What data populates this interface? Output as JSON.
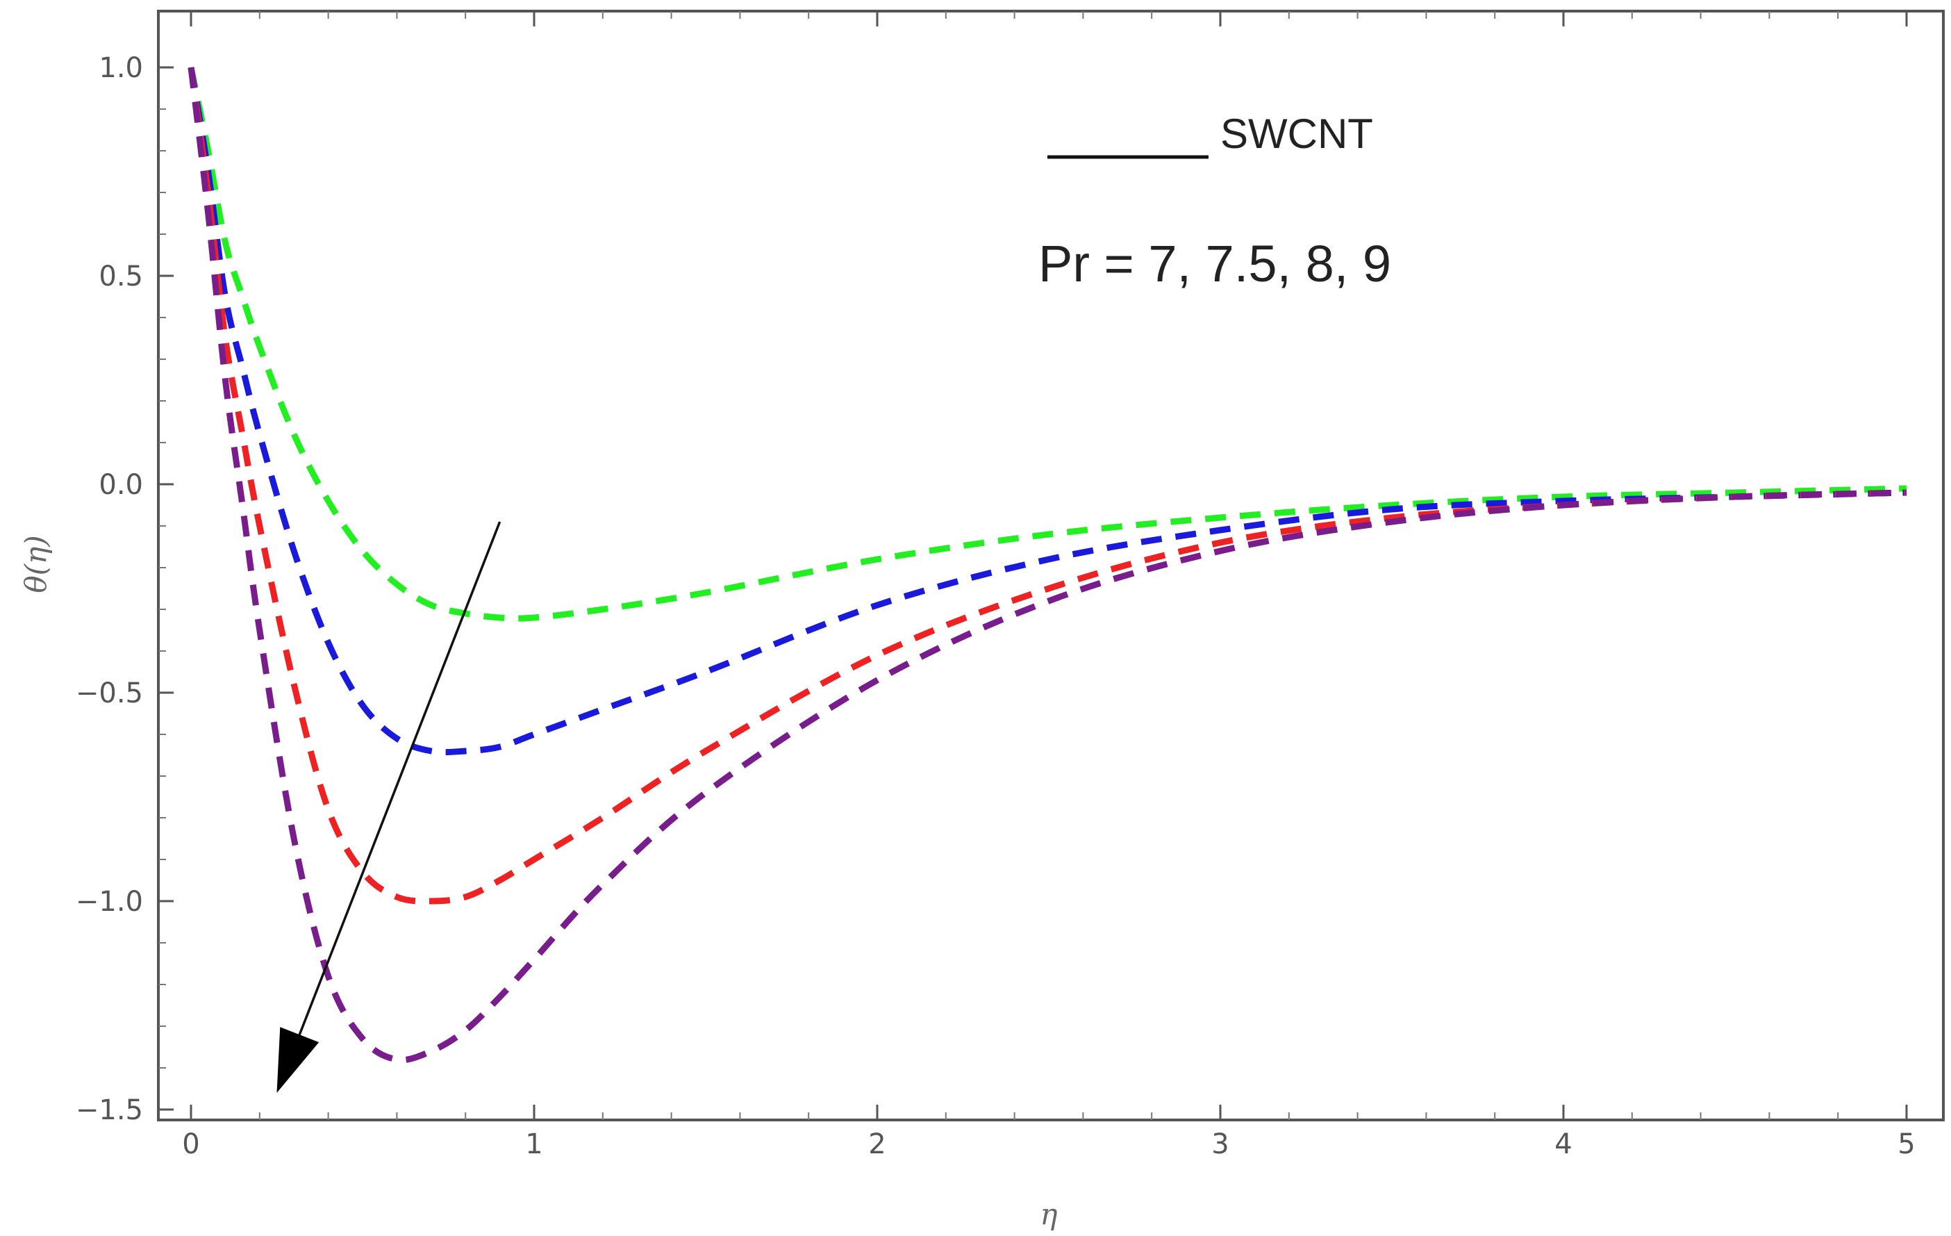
{
  "chart_data": {
    "type": "line",
    "title": "",
    "xlabel": "η",
    "ylabel": "θ(η)",
    "xlim": [
      -0.1,
      5.1
    ],
    "ylim": [
      -1.5,
      1.1
    ],
    "xticks": [
      0,
      1,
      2,
      3,
      4,
      5
    ],
    "xtick_labels": [
      "0",
      "1",
      "2",
      "3",
      "4",
      "5"
    ],
    "yticks": [
      1.0,
      0.5,
      0.0,
      -0.5,
      -1.0,
      -1.5
    ],
    "ytick_labels": [
      "1.0",
      "0.5",
      "0.0",
      "−0.5",
      "−1.0",
      "−1.5"
    ],
    "legend": {
      "label": "SWCNT",
      "line_style": "solid",
      "placement": "top-right"
    },
    "annotation": {
      "text": "Pr = 7, 7.5, 8, 9",
      "arrow": {
        "from": [
          0.9,
          -0.09
        ],
        "to": [
          0.25,
          -1.46
        ],
        "meaning": "increasing Pr"
      }
    },
    "series": [
      {
        "name": "Pr = 7",
        "color": "#22ee22",
        "x": [
          0,
          0.05,
          0.1,
          0.15,
          0.2,
          0.3,
          0.4,
          0.5,
          0.6,
          0.7,
          0.8,
          0.9,
          1.0,
          1.2,
          1.5,
          2.0,
          2.5,
          3.0,
          3.5,
          4.0,
          4.5,
          5.0
        ],
        "values": [
          1.0,
          0.8,
          0.58,
          0.45,
          0.33,
          0.12,
          -0.04,
          -0.16,
          -0.24,
          -0.29,
          -0.31,
          -0.32,
          -0.32,
          -0.3,
          -0.26,
          -0.18,
          -0.12,
          -0.08,
          -0.05,
          -0.03,
          -0.02,
          -0.01
        ]
      },
      {
        "name": "Pr = 7.5",
        "color": "#1a1adc",
        "x": [
          0,
          0.05,
          0.1,
          0.15,
          0.2,
          0.3,
          0.4,
          0.5,
          0.6,
          0.7,
          0.8,
          0.9,
          1.0,
          1.2,
          1.5,
          2.0,
          2.5,
          3.0,
          3.5,
          4.0,
          4.5,
          5.0
        ],
        "values": [
          1.0,
          0.75,
          0.45,
          0.28,
          0.12,
          -0.16,
          -0.38,
          -0.53,
          -0.61,
          -0.64,
          -0.64,
          -0.63,
          -0.6,
          -0.54,
          -0.45,
          -0.29,
          -0.18,
          -0.11,
          -0.06,
          -0.04,
          -0.03,
          -0.02
        ]
      },
      {
        "name": "Pr = 8",
        "color": "#ee2222",
        "x": [
          0,
          0.05,
          0.1,
          0.15,
          0.2,
          0.3,
          0.4,
          0.5,
          0.6,
          0.7,
          0.8,
          0.9,
          1.0,
          1.2,
          1.5,
          2.0,
          2.5,
          3.0,
          3.5,
          4.0,
          4.5,
          5.0
        ],
        "values": [
          1.0,
          0.7,
          0.35,
          0.12,
          -0.1,
          -0.48,
          -0.78,
          -0.93,
          -0.99,
          -1.0,
          -0.99,
          -0.95,
          -0.9,
          -0.8,
          -0.64,
          -0.41,
          -0.25,
          -0.14,
          -0.08,
          -0.05,
          -0.03,
          -0.02
        ]
      },
      {
        "name": "Pr = 9",
        "color": "#7a1d8c",
        "x": [
          0,
          0.05,
          0.1,
          0.15,
          0.2,
          0.3,
          0.4,
          0.5,
          0.6,
          0.7,
          0.8,
          0.9,
          1.0,
          1.2,
          1.5,
          2.0,
          2.5,
          3.0,
          3.5,
          4.0,
          4.5,
          5.0
        ],
        "values": [
          1.0,
          0.65,
          0.25,
          -0.05,
          -0.35,
          -0.85,
          -1.18,
          -1.33,
          -1.38,
          -1.36,
          -1.31,
          -1.23,
          -1.14,
          -0.96,
          -0.74,
          -0.47,
          -0.28,
          -0.16,
          -0.09,
          -0.05,
          -0.03,
          -0.02
        ]
      }
    ]
  }
}
